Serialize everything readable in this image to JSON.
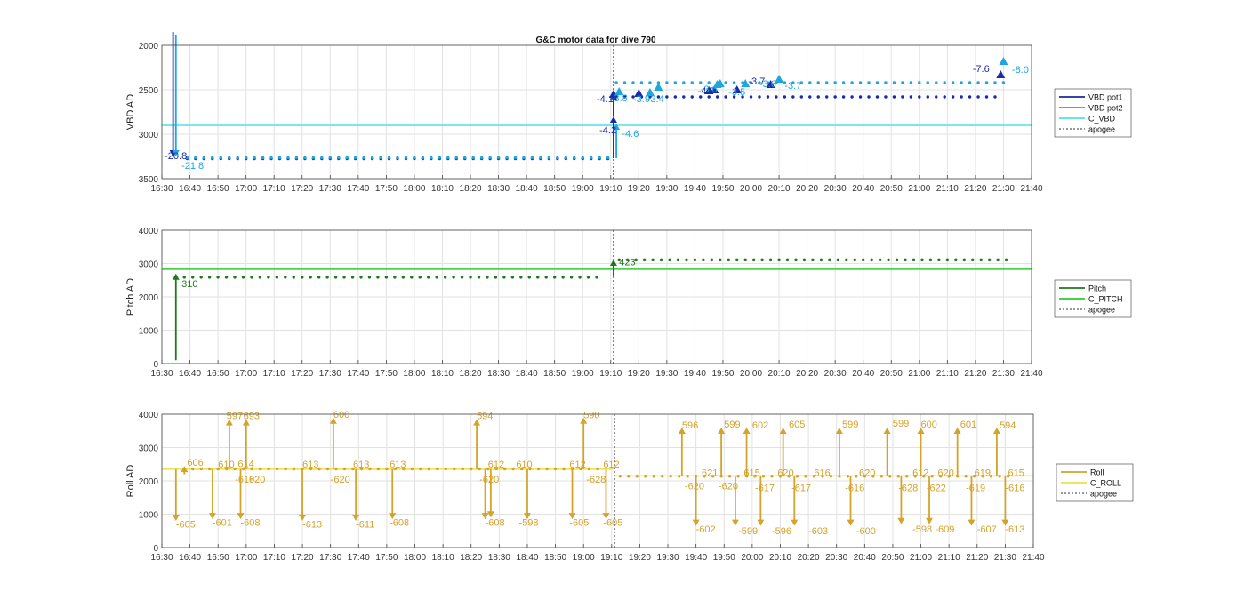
{
  "figure": {
    "title": "G&C motor data for dive 790",
    "xticks": [
      "16:30",
      "16:40",
      "16:50",
      "17:00",
      "17:10",
      "17:20",
      "17:30",
      "17:40",
      "17:50",
      "18:00",
      "18:10",
      "18:20",
      "18:30",
      "18:40",
      "18:50",
      "19:00",
      "19:10",
      "19:20",
      "19:30",
      "19:40",
      "19:50",
      "20:00",
      "20:10",
      "20:20",
      "20:30",
      "20:40",
      "20:50",
      "21:00",
      "21:10",
      "21:20",
      "21:30",
      "21:40"
    ],
    "apogee_time": "19:11",
    "colors": {
      "vbd1": "#1a2aa8",
      "vbd2": "#1ea6de",
      "cvbd": "#4fe0e8",
      "pitch": "#1f7a1f",
      "cpitch": "#2ecc2e",
      "roll": "#d4a32a",
      "croll": "#f0e040",
      "apogee": "#333333",
      "grid": "#e2e2e2"
    }
  },
  "chart_data": [
    {
      "type": "scatter",
      "ylabel": "VBD AD",
      "ylim": [
        2000,
        3500
      ],
      "y_reversed": true,
      "yticks": [
        "2000",
        "2500",
        "3000",
        "3500"
      ],
      "grid": true,
      "legend_position": "right",
      "legend": [
        "VBD pot1",
        "VBD pot2",
        "C_VBD",
        "apogee"
      ],
      "reference_line": {
        "name": "C_VBD",
        "y": 2900
      },
      "series": [
        {
          "name": "VBD pot1",
          "segments": [
            {
              "t0": "16:39",
              "t1": "19:09",
              "y": 3275
            },
            {
              "t0": "19:12",
              "t1": "21:28",
              "y": 2580
            }
          ]
        },
        {
          "name": "VBD pot2",
          "segments": [
            {
              "t0": "16:39",
              "t1": "19:09",
              "y": 3265
            },
            {
              "t0": "19:12",
              "t1": "21:31",
              "y": 2420
            }
          ]
        }
      ],
      "arrows": [
        {
          "series": "VBD pot1",
          "t": "16:34",
          "from": 1850,
          "to": 3250
        },
        {
          "series": "VBD pot2",
          "t": "16:35",
          "from": 1880,
          "to": 3250
        },
        {
          "series": "VBD pot1",
          "t": "19:11",
          "from": 3270,
          "to": 2800
        },
        {
          "series": "VBD pot2",
          "t": "19:12",
          "from": 3270,
          "to": 2880
        },
        {
          "series": "VBD pot1",
          "t": "19:11",
          "from": 2800,
          "to": 2540
        }
      ],
      "markers": [
        {
          "series": "VBD pot1",
          "t": "19:11",
          "y": 2550
        },
        {
          "series": "VBD pot2",
          "t": "19:13",
          "y": 2520
        },
        {
          "series": "VBD pot1",
          "t": "19:20",
          "y": 2540
        },
        {
          "series": "VBD pot2",
          "t": "19:24",
          "y": 2530
        },
        {
          "series": "VBD pot2",
          "t": "19:27",
          "y": 2470
        },
        {
          "series": "VBD pot1",
          "t": "19:45",
          "y": 2510
        },
        {
          "series": "VBD pot1",
          "t": "19:47",
          "y": 2500
        },
        {
          "series": "VBD pot2",
          "t": "19:48",
          "y": 2440
        },
        {
          "series": "VBD pot2",
          "t": "19:49",
          "y": 2430
        },
        {
          "series": "VBD pot1",
          "t": "19:55",
          "y": 2500
        },
        {
          "series": "VBD pot2",
          "t": "19:58",
          "y": 2430
        },
        {
          "series": "VBD pot1",
          "t": "20:07",
          "y": 2440
        },
        {
          "series": "VBD pot2",
          "t": "20:10",
          "y": 2380
        },
        {
          "series": "VBD pot1",
          "t": "21:29",
          "y": 2330
        },
        {
          "series": "VBD pot2",
          "t": "21:30",
          "y": 2180
        }
      ],
      "annotations": [
        {
          "text": "-20.8",
          "series": "VBD pot1",
          "t": "16:31",
          "y": 3280
        },
        {
          "text": "-21.8",
          "series": "VBD pot2",
          "t": "16:37",
          "y": 3390
        },
        {
          "text": "-4.2",
          "series": "VBD pot1",
          "t": "19:06",
          "y": 2990
        },
        {
          "text": "-4.6",
          "series": "VBD pot2",
          "t": "19:14",
          "y": 3030
        },
        {
          "text": "-4.1",
          "series": "VBD pot1",
          "t": "19:05",
          "y": 2640
        },
        {
          "text": "-3.8",
          "series": "VBD pot2",
          "t": "19:10",
          "y": 2630
        },
        {
          "text": "-3.9",
          "series": "VBD pot2",
          "t": "19:18",
          "y": 2640
        },
        {
          "text": "-3.4",
          "series": "VBD pot2",
          "t": "19:23",
          "y": 2640
        },
        {
          "text": "-4.5",
          "series": "VBD pot1",
          "t": "19:41",
          "y": 2550
        },
        {
          "text": "-3.6",
          "series": "VBD pot2",
          "t": "19:42",
          "y": 2530
        },
        {
          "text": "-3.5",
          "series": "VBD pot2",
          "t": "19:52",
          "y": 2560
        },
        {
          "text": "-3.7",
          "series": "VBD pot1",
          "t": "19:59",
          "y": 2440
        },
        {
          "text": "-3.6",
          "series": "VBD pot2",
          "t": "20:03",
          "y": 2470
        },
        {
          "text": "-3.7",
          "series": "VBD pot2",
          "t": "20:12",
          "y": 2490
        },
        {
          "text": "-7.6",
          "series": "VBD pot1",
          "t": "21:19",
          "y": 2300
        },
        {
          "text": "-8.0",
          "series": "VBD pot2",
          "t": "21:33",
          "y": 2310
        }
      ]
    },
    {
      "type": "scatter",
      "ylabel": "Pitch AD",
      "ylim": [
        0,
        4000
      ],
      "yticks": [
        "0",
        "1000",
        "2000",
        "3000",
        "4000"
      ],
      "grid": true,
      "legend_position": "right",
      "legend": [
        "Pitch",
        "C_PITCH",
        "apogee"
      ],
      "reference_line": {
        "name": "C_PITCH",
        "y": 2830
      },
      "series": [
        {
          "name": "Pitch",
          "segments": [
            {
              "t0": "16:38",
              "t1": "19:07",
              "y": 2590
            },
            {
              "t0": "19:13",
              "t1": "21:31",
              "y": 3110
            }
          ]
        }
      ],
      "arrows": [
        {
          "series": "Pitch",
          "t": "16:35",
          "from": 100,
          "to": 2700
        },
        {
          "series": "Pitch",
          "t": "19:11",
          "from": 2620,
          "to": 3120
        }
      ],
      "annotations": [
        {
          "text": "310",
          "series": "Pitch",
          "t": "16:37",
          "y": 2300
        },
        {
          "text": "423",
          "series": "Pitch",
          "t": "19:13",
          "y": 2950
        }
      ]
    },
    {
      "type": "scatter",
      "ylabel": "Roll AD",
      "ylim": [
        0,
        4000
      ],
      "yticks": [
        "0",
        "1000",
        "2000",
        "3000",
        "4000"
      ],
      "grid": true,
      "legend_position": "right",
      "legend": [
        "Roll",
        "C_ROLL",
        "apogee"
      ],
      "reference_lines": [
        {
          "name": "C_ROLL",
          "t0": "16:30",
          "t1": "19:11",
          "y": 2350
        },
        {
          "name": "C_ROLL",
          "t0": "19:11",
          "t1": "21:40",
          "y": 2150
        }
      ],
      "series": [
        {
          "name": "Roll",
          "segments": [
            {
              "t0": "16:38",
              "t1": "19:05",
              "y": 2360
            },
            {
              "t0": "19:13",
              "t1": "21:33",
              "y": 2140
            }
          ]
        }
      ],
      "arrows": [
        {
          "t": "16:35",
          "from": 2350,
          "to": 800
        },
        {
          "t": "16:38",
          "from": 2200,
          "to": 2450
        },
        {
          "t": "16:48",
          "from": 2350,
          "to": 850
        },
        {
          "t": "16:54",
          "from": 2350,
          "to": 3850
        },
        {
          "t": "16:58",
          "from": 2350,
          "to": 850
        },
        {
          "t": "17:00",
          "from": 2350,
          "to": 3850
        },
        {
          "t": "17:20",
          "from": 2350,
          "to": 800
        },
        {
          "t": "17:31",
          "from": 2350,
          "to": 3900
        },
        {
          "t": "17:39",
          "from": 2350,
          "to": 800
        },
        {
          "t": "17:52",
          "from": 2350,
          "to": 850
        },
        {
          "t": "18:22",
          "from": 2350,
          "to": 3850
        },
        {
          "t": "18:25",
          "from": 2350,
          "to": 850
        },
        {
          "t": "18:27",
          "from": 2350,
          "to": 900
        },
        {
          "t": "18:40",
          "from": 2350,
          "to": 850
        },
        {
          "t": "18:56",
          "from": 2350,
          "to": 850
        },
        {
          "t": "19:00",
          "from": 2350,
          "to": 3900
        },
        {
          "t": "19:08",
          "from": 2350,
          "to": 850
        },
        {
          "t": "19:35",
          "from": 2150,
          "to": 3600
        },
        {
          "t": "19:40",
          "from": 2150,
          "to": 650
        },
        {
          "t": "19:49",
          "from": 2150,
          "to": 3600
        },
        {
          "t": "19:54",
          "from": 2150,
          "to": 650
        },
        {
          "t": "19:58",
          "from": 2150,
          "to": 3600
        },
        {
          "t": "20:03",
          "from": 2150,
          "to": 650
        },
        {
          "t": "20:11",
          "from": 2150,
          "to": 3600
        },
        {
          "t": "20:15",
          "from": 2150,
          "to": 650
        },
        {
          "t": "20:31",
          "from": 2150,
          "to": 3600
        },
        {
          "t": "20:35",
          "from": 2150,
          "to": 650
        },
        {
          "t": "20:48",
          "from": 2150,
          "to": 3600
        },
        {
          "t": "20:53",
          "from": 2150,
          "to": 700
        },
        {
          "t": "21:00",
          "from": 2150,
          "to": 3600
        },
        {
          "t": "21:03",
          "from": 2150,
          "to": 700
        },
        {
          "t": "21:13",
          "from": 2150,
          "to": 3600
        },
        {
          "t": "21:18",
          "from": 2150,
          "to": 650
        },
        {
          "t": "21:27",
          "from": 2150,
          "to": 3600
        },
        {
          "t": "21:30",
          "from": 2150,
          "to": 650
        }
      ],
      "annotations": [
        {
          "text": "-605",
          "t": "16:35",
          "y": 600
        },
        {
          "text": "606",
          "t": "16:39",
          "y": 2450
        },
        {
          "text": "-601",
          "t": "16:48",
          "y": 650
        },
        {
          "text": "610",
          "t": "16:50",
          "y": 2400
        },
        {
          "text": "597",
          "t": "16:53",
          "y": 3860
        },
        {
          "text": "693",
          "t": "16:59",
          "y": 3860
        },
        {
          "text": "614",
          "t": "16:57",
          "y": 2420
        },
        {
          "text": "-619",
          "t": "16:56",
          "y": 1950
        },
        {
          "text": "620",
          "t": "17:01",
          "y": 1950
        },
        {
          "text": "-608",
          "t": "16:58",
          "y": 650
        },
        {
          "text": "613",
          "t": "17:20",
          "y": 2400
        },
        {
          "text": "-613",
          "t": "17:20",
          "y": 600
        },
        {
          "text": "600",
          "t": "17:31",
          "y": 3900
        },
        {
          "text": "-620",
          "t": "17:30",
          "y": 1950
        },
        {
          "text": "613",
          "t": "17:38",
          "y": 2400
        },
        {
          "text": "-611",
          "t": "17:39",
          "y": 600
        },
        {
          "text": "613",
          "t": "17:51",
          "y": 2400
        },
        {
          "text": "-608",
          "t": "17:51",
          "y": 650
        },
        {
          "text": "594",
          "t": "18:22",
          "y": 3860
        },
        {
          "text": "-620",
          "t": "18:23",
          "y": 1950
        },
        {
          "text": "612",
          "t": "18:26",
          "y": 2400
        },
        {
          "text": "-608",
          "t": "18:25",
          "y": 650
        },
        {
          "text": "610",
          "t": "18:36",
          "y": 2400
        },
        {
          "text": "-598",
          "t": "18:37",
          "y": 650
        },
        {
          "text": "612",
          "t": "18:55",
          "y": 2400
        },
        {
          "text": "-605",
          "t": "18:55",
          "y": 650
        },
        {
          "text": "590",
          "t": "19:00",
          "y": 3880
        },
        {
          "text": "-628",
          "t": "19:01",
          "y": 1950
        },
        {
          "text": "612",
          "t": "19:07",
          "y": 2400
        },
        {
          "text": "-605",
          "t": "19:07",
          "y": 650
        },
        {
          "text": "596",
          "t": "19:35",
          "y": 3580
        },
        {
          "text": "-620",
          "t": "19:36",
          "y": 1750
        },
        {
          "text": "621",
          "t": "19:42",
          "y": 2150
        },
        {
          "text": "-602",
          "t": "19:40",
          "y": 450
        },
        {
          "text": "599",
          "t": "19:50",
          "y": 3600
        },
        {
          "text": "-620",
          "t": "19:48",
          "y": 1750
        },
        {
          "text": "615",
          "t": "19:57",
          "y": 2150
        },
        {
          "text": "-599",
          "t": "19:55",
          "y": 400
        },
        {
          "text": "602",
          "t": "20:00",
          "y": 3580
        },
        {
          "text": "-617",
          "t": "20:01",
          "y": 1700
        },
        {
          "text": "620",
          "t": "20:09",
          "y": 2150
        },
        {
          "text": "-596",
          "t": "20:07",
          "y": 400
        },
        {
          "text": "605",
          "t": "20:13",
          "y": 3600
        },
        {
          "text": "-617",
          "t": "20:14",
          "y": 1700
        },
        {
          "text": "616",
          "t": "20:22",
          "y": 2150
        },
        {
          "text": "-603",
          "t": "20:20",
          "y": 400
        },
        {
          "text": "599",
          "t": "20:32",
          "y": 3600
        },
        {
          "text": "-616",
          "t": "20:33",
          "y": 1700
        },
        {
          "text": "620",
          "t": "20:38",
          "y": 2150
        },
        {
          "text": "-600",
          "t": "20:37",
          "y": 400
        },
        {
          "text": "599",
          "t": "20:50",
          "y": 3630
        },
        {
          "text": "-628",
          "t": "20:52",
          "y": 1700
        },
        {
          "text": "612",
          "t": "20:57",
          "y": 2150
        },
        {
          "text": "-598",
          "t": "20:57",
          "y": 450
        },
        {
          "text": "600",
          "t": "21:00",
          "y": 3600
        },
        {
          "text": "-622",
          "t": "21:02",
          "y": 1700
        },
        {
          "text": "620",
          "t": "21:06",
          "y": 2150
        },
        {
          "text": "-609",
          "t": "21:05",
          "y": 450
        },
        {
          "text": "601",
          "t": "21:14",
          "y": 3600
        },
        {
          "text": "-619",
          "t": "21:16",
          "y": 1700
        },
        {
          "text": "619",
          "t": "21:19",
          "y": 2150
        },
        {
          "text": "-607",
          "t": "21:20",
          "y": 450
        },
        {
          "text": "594",
          "t": "21:28",
          "y": 3580
        },
        {
          "text": "-616",
          "t": "21:30",
          "y": 1700
        },
        {
          "text": "615",
          "t": "21:31",
          "y": 2150
        },
        {
          "text": "-613",
          "t": "21:30",
          "y": 450
        }
      ]
    }
  ]
}
